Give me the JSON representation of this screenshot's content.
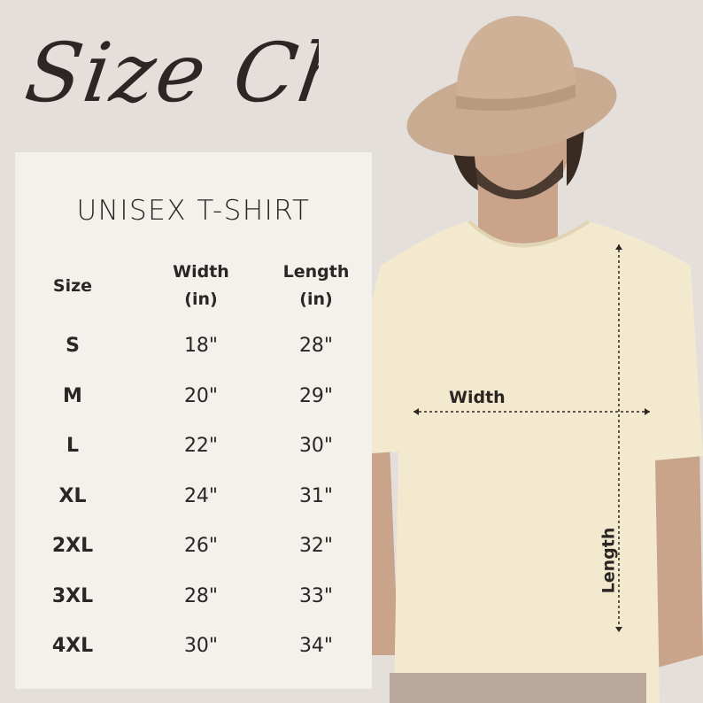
{
  "heading": "Size Chart",
  "product": "UNISEX T-SHIRT",
  "columns": {
    "size": "Size",
    "width": [
      "Width",
      "(in)"
    ],
    "length": [
      "Length",
      "(in)"
    ]
  },
  "rows": [
    {
      "size": "S",
      "width": "18\"",
      "length": "28\""
    },
    {
      "size": "M",
      "width": "20\"",
      "length": "29\""
    },
    {
      "size": "L",
      "width": "22\"",
      "length": "30\""
    },
    {
      "size": "XL",
      "width": "24\"",
      "length": "31\""
    },
    {
      "size": "2XL",
      "width": "26\"",
      "length": "32\""
    },
    {
      "size": "3XL",
      "width": "28\"",
      "length": "33\""
    },
    {
      "size": "4XL",
      "width": "30\"",
      "length": "34\""
    }
  ],
  "annotations": {
    "width": "Width",
    "length": "Length"
  },
  "colors": {
    "background": "#e4dfda",
    "panel": "#f3f1ec",
    "shirt": "#f2e9cf",
    "hat": "#c9ab91",
    "text": "#2b2624"
  }
}
